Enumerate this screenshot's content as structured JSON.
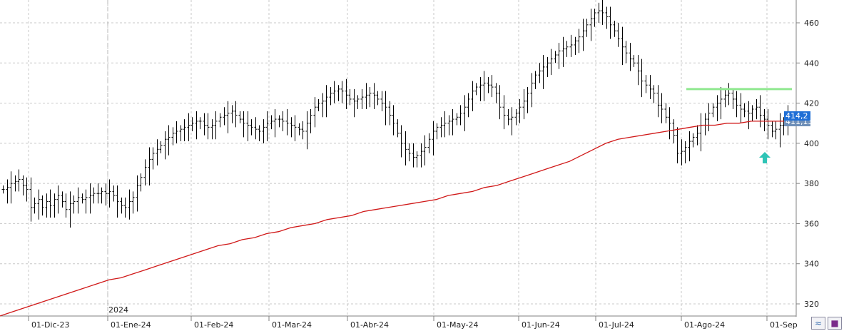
{
  "chart_data": {
    "type": "ohlc",
    "title": "",
    "y_axis": {
      "position": "right",
      "range": [
        316,
        472
      ],
      "ticks": [
        320,
        340,
        360,
        380,
        400,
        420,
        440,
        460
      ]
    },
    "x_axis": {
      "tick_labels": [
        "01-Dic-23",
        "01-Ene-24",
        "01-Feb-24",
        "01-Mar-24",
        "01-Abr-24",
        "01-May-24",
        "01-Jun-24",
        "01-Jul-24",
        "01-Ago-24",
        "01-Sep"
      ],
      "year_marker": "2024"
    },
    "grid": true,
    "colors": {
      "bars": "#000000",
      "moving_average": "#d01818",
      "resistance": "#90e890",
      "arrow": "#2ec4b6",
      "last_price_tag": "#1f6fd6",
      "ma_tag": "#6f8fb8"
    },
    "series": [
      {
        "kind": "price_bars",
        "closes": [
          377,
          378,
          380,
          381,
          382,
          379,
          377,
          368,
          370,
          372,
          368,
          371,
          369,
          372,
          374,
          371,
          367,
          370,
          371,
          373,
          372,
          373,
          374,
          375,
          375,
          376,
          375,
          376,
          374,
          371,
          369,
          368,
          371,
          373,
          379,
          383,
          388,
          392,
          395,
          397,
          399,
          402,
          403,
          405,
          406,
          407,
          408,
          409,
          410,
          411,
          411,
          409,
          408,
          409,
          411,
          413,
          414,
          415,
          416,
          414,
          412,
          410,
          409,
          408,
          407,
          406,
          408,
          410,
          411,
          412,
          412,
          411,
          410,
          409,
          408,
          407,
          406,
          410,
          414,
          418,
          420,
          421,
          423,
          425,
          426,
          427,
          426,
          424,
          422,
          421,
          422,
          423,
          424,
          425,
          424,
          422,
          420,
          418,
          414,
          410,
          405,
          400,
          397,
          395,
          393,
          394,
          396,
          398,
          402,
          406,
          408,
          409,
          410,
          411,
          412,
          413,
          415,
          418,
          422,
          426,
          428,
          429,
          430,
          429,
          428,
          425,
          418,
          414,
          412,
          413,
          415,
          418,
          421,
          425,
          430,
          434,
          436,
          438,
          440,
          442,
          444,
          446,
          447,
          448,
          449,
          451,
          453,
          456,
          459,
          462,
          465,
          466,
          465,
          463,
          459,
          456,
          452,
          448,
          445,
          442,
          440,
          436,
          431,
          429,
          427,
          425,
          419,
          417,
          413,
          410,
          404,
          395,
          396,
          398,
          401,
          403,
          405,
          409,
          412,
          415,
          418,
          420,
          422,
          424,
          425,
          422,
          419,
          417,
          416,
          415,
          417,
          418,
          414,
          412,
          409,
          406,
          407,
          409,
          410,
          414
        ],
        "annotation": "Last close label 414,2"
      },
      {
        "kind": "moving_average",
        "values": [
          314,
          316,
          318,
          320,
          322,
          324,
          326,
          328,
          330,
          332,
          333,
          335,
          337,
          339,
          341,
          343,
          345,
          347,
          349,
          350,
          352,
          353,
          355,
          356,
          358,
          359,
          360,
          362,
          363,
          364,
          366,
          367,
          368,
          369,
          370,
          371,
          372,
          374,
          375,
          376,
          378,
          379,
          381,
          383,
          385,
          387,
          389,
          391,
          394,
          397,
          400,
          402,
          403,
          404,
          405,
          406,
          407,
          408,
          409,
          409,
          410,
          410,
          411,
          411,
          411,
          411
        ],
        "label": "411,13"
      },
      {
        "kind": "resistance_line",
        "value": 427
      }
    ]
  },
  "ui": {
    "last_price_label": "414,2",
    "ma_price_label": "411,13",
    "zoom_icon": "zigzag-icon",
    "save_icon": "floppy-disk-icon"
  }
}
